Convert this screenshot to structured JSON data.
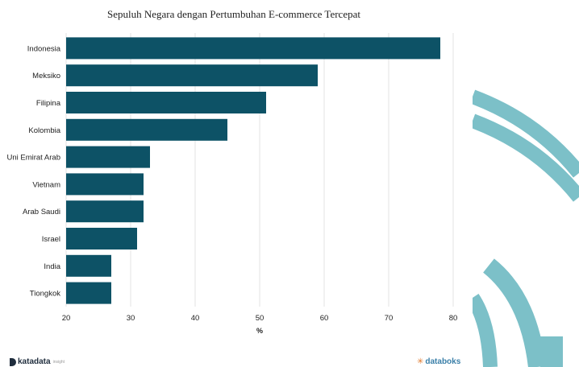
{
  "chart_data": {
    "type": "bar",
    "orientation": "horizontal",
    "title": "Sepuluh Negara dengan Pertumbuhan E-commerce Tercepat",
    "xlabel": "%",
    "ylabel": "",
    "xlim": [
      20,
      80
    ],
    "xticks": [
      20,
      30,
      40,
      50,
      60,
      70,
      80
    ],
    "grid": "vertical",
    "bar_color": "#0d5266",
    "categories": [
      "Indonesia",
      "Meksiko",
      "Filipina",
      "Kolombia",
      "Uni Emirat Arab",
      "Vietnam",
      "Arab Saudi",
      "Israel",
      "India",
      "Tiongkok"
    ],
    "values": [
      78,
      59,
      51,
      45,
      33,
      32,
      32,
      31,
      27,
      27
    ]
  },
  "branding": {
    "left": "katadata",
    "left_suffix": "insight",
    "right": "databoks"
  },
  "colors": {
    "accent_decor": "#7cc0c8"
  }
}
